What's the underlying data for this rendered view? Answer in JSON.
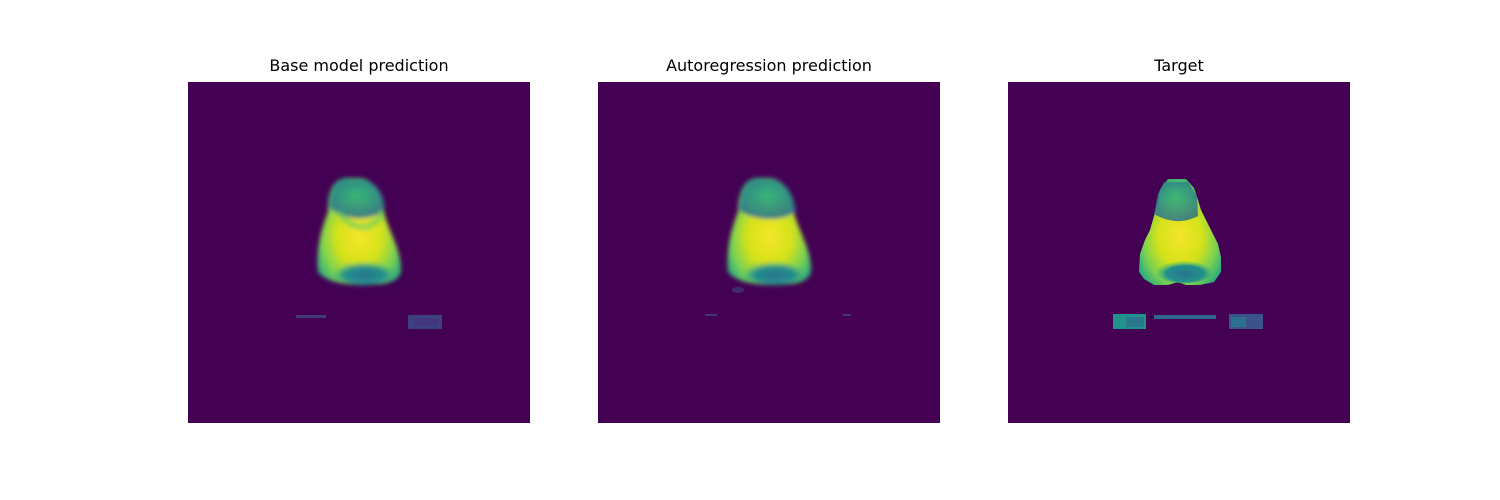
{
  "figure": {
    "panels": [
      {
        "title": "Base model prediction"
      },
      {
        "title": "Autoregression prediction"
      },
      {
        "title": "Target"
      }
    ],
    "colormap": "viridis",
    "colors": {
      "background": "#440154",
      "high": "#fde725",
      "mid": "#21918c"
    }
  }
}
